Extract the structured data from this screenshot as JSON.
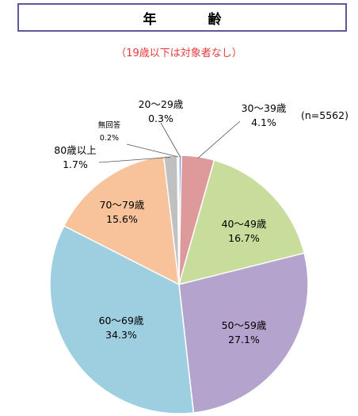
{
  "header": {
    "title": "年　齢",
    "note": "（19歳以下は対象者なし）"
  },
  "chart_data": {
    "type": "pie",
    "title": "年　齢",
    "subtitle": "（19歳以下は対象者なし）",
    "n_label": "(n=5562)",
    "start_angle_deg": 0,
    "direction": "clockwise",
    "slices": [
      {
        "label": "20～29歳",
        "value": 0.3,
        "value_label": "0.3%",
        "color": "#5b8dd6"
      },
      {
        "label": "30～39歳",
        "value": 4.1,
        "value_label": "4.1%",
        "color": "#de9a9a"
      },
      {
        "label": "40～49歳",
        "value": 16.7,
        "value_label": "16.7%",
        "color": "#c8dc9c"
      },
      {
        "label": "50～59歳",
        "value": 27.1,
        "value_label": "27.1%",
        "color": "#b4a3cc"
      },
      {
        "label": "60～69歳",
        "value": 34.3,
        "value_label": "34.3%",
        "color": "#9ecfe0"
      },
      {
        "label": "70～79歳",
        "value": 15.6,
        "value_label": "15.6%",
        "color": "#f8c29a"
      },
      {
        "label": "80歳以上",
        "value": 1.7,
        "value_label": "1.7%",
        "color": "#c0c0c0"
      },
      {
        "label": "無回答",
        "value": 0.2,
        "value_label": "0.2%",
        "color": "#f0f0f0"
      }
    ]
  }
}
